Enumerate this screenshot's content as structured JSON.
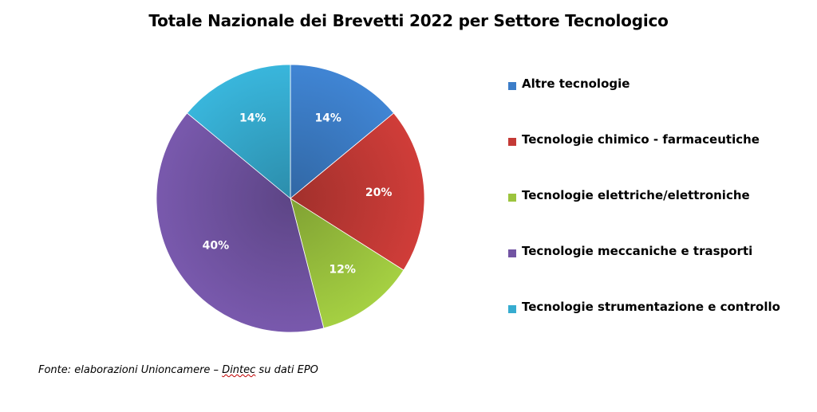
{
  "chart_data": {
    "type": "pie",
    "title": "Totale Nazionale dei Brevetti 2022 per Settore Tecnologico",
    "categories": [
      "Altre tecnologie",
      "Tecnologie chimico - farmaceutiche",
      "Tecnologie elettriche/elettroniche",
      "Tecnologie meccaniche e trasporti",
      "Tecnologie strumentazione e controllo"
    ],
    "values": [
      14,
      20,
      12,
      40,
      14
    ],
    "labels": [
      "14%",
      "20%",
      "12%",
      "40%",
      "14%"
    ],
    "colors": [
      "#3c7dc8",
      "#c43a36",
      "#9cc43e",
      "#7254a3",
      "#36acd0"
    ],
    "legend_position": "right"
  },
  "source": {
    "prefix": "Fonte: elaborazioni Unioncamere – ",
    "link": "Dintec",
    "suffix": " su dati EPO"
  }
}
